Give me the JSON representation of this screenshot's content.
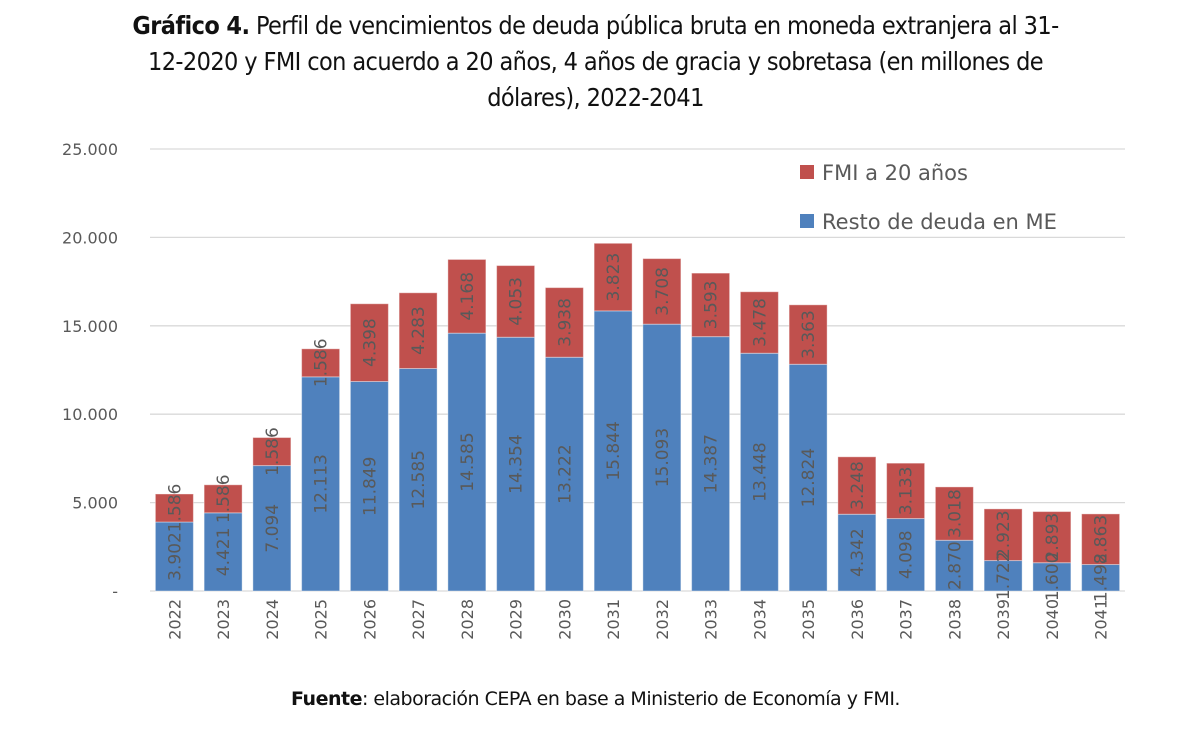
{
  "title": {
    "bold": "Gráfico 4.",
    "line1": " Perfil de vencimientos de deuda pública bruta en moneda extranjera al 31-",
    "line2": "12-2020 y FMI con acuerdo a 20 años, 4 años de gracia y sobretasa (en millones de",
    "line3": "dólares), 2022-2041"
  },
  "source": {
    "bold": "Fuente",
    "text": ": elaboración CEPA en base a Ministerio de Economía y FMI."
  },
  "chart_data": {
    "type": "bar",
    "stacked": true,
    "title": "Perfil de vencimientos de deuda pública bruta en moneda extranjera al 31-12-2020 y FMI con acuerdo a 20 años, 4 años de gracia y sobretasa (en millones de dólares), 2022-2041",
    "xlabel": "",
    "ylabel": "",
    "ylim": [
      0,
      25000
    ],
    "yticks": [
      0,
      5000,
      10000,
      15000,
      20000,
      25000
    ],
    "ytick_labels": [
      "-",
      "5.000",
      "10.000",
      "15.000",
      "20.000",
      "25.000"
    ],
    "grid": true,
    "legend_position": "top-right",
    "categories": [
      "2022",
      "2023",
      "2024",
      "2025",
      "2026",
      "2027",
      "2028",
      "2029",
      "2030",
      "2031",
      "2032",
      "2033",
      "2034",
      "2035",
      "2036",
      "2037",
      "2038",
      "2039",
      "2040",
      "2041"
    ],
    "series": [
      {
        "name": "Resto de deuda en ME",
        "color": "#4f81bd",
        "values": [
          3902,
          4421,
          7094,
          12113,
          11849,
          12585,
          14585,
          14354,
          13222,
          15844,
          15093,
          14387,
          13448,
          12824,
          4342,
          4098,
          2870,
          1722,
          1600,
          1498
        ],
        "labels": [
          "3.902",
          "4.421",
          "7.094",
          "12.113",
          "11.849",
          "12.585",
          "14.585",
          "14.354",
          "13.222",
          "15.844",
          "15.093",
          "14.387",
          "13.448",
          "12.824",
          "4.342",
          "4.098",
          "2.870",
          "1.722",
          "1.600",
          "1.498"
        ]
      },
      {
        "name": "FMI a 20 años",
        "color": "#c0504d",
        "values": [
          1586,
          1586,
          1586,
          1586,
          4398,
          4283,
          4168,
          4053,
          3938,
          3823,
          3708,
          3593,
          3478,
          3363,
          3248,
          3133,
          3018,
          2923,
          2893,
          2863
        ],
        "labels": [
          "1.586",
          "1.586",
          "1.586",
          "1.586",
          "4.398",
          "4.283",
          "4.168",
          "4.053",
          "3.938",
          "3.823",
          "3.708",
          "3.593",
          "3.478",
          "3.363",
          "3.248",
          "3.133",
          "3.018",
          "2.923",
          "2.893",
          "2.863"
        ]
      }
    ],
    "legend": [
      "FMI a 20 años",
      "Resto de deuda en ME"
    ]
  }
}
